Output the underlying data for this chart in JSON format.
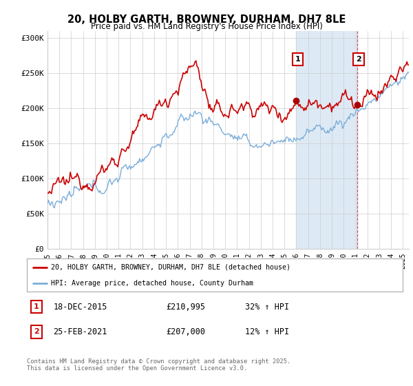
{
  "title": "20, HOLBY GARTH, BROWNEY, DURHAM, DH7 8LE",
  "subtitle": "Price paid vs. HM Land Registry's House Price Index (HPI)",
  "ylabel_ticks": [
    "£0",
    "£50K",
    "£100K",
    "£150K",
    "£200K",
    "£250K",
    "£300K"
  ],
  "ytick_values": [
    0,
    50000,
    100000,
    150000,
    200000,
    250000,
    300000
  ],
  "ylim": [
    0,
    310000
  ],
  "sale1_date": "18-DEC-2015",
  "sale1_price": 210995,
  "sale1_hpi_text": "32% ↑ HPI",
  "sale1_year": 2015.96,
  "sale2_date": "25-FEB-2021",
  "sale2_price": 207000,
  "sale2_hpi_text": "12% ↑ HPI",
  "sale2_year": 2021.12,
  "legend_line1": "20, HOLBY GARTH, BROWNEY, DURHAM, DH7 8LE (detached house)",
  "legend_line2": "HPI: Average price, detached house, County Durham",
  "footer": "Contains HM Land Registry data © Crown copyright and database right 2025.\nThis data is licensed under the Open Government Licence v3.0.",
  "red_color": "#cc0000",
  "blue_color": "#7aaddb",
  "highlight_bg": "#ddeaf5",
  "grid_color": "#cccccc",
  "background_color": "#ffffff",
  "sale_dot_color": "#aa0000"
}
